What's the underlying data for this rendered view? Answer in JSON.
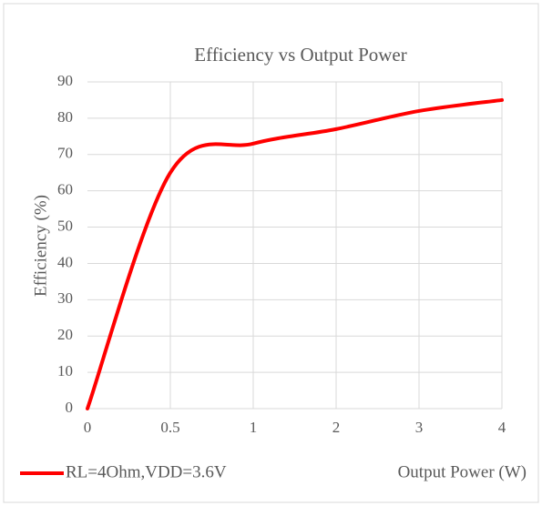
{
  "chart_data": {
    "type": "line",
    "title": "Efficiency vs Output Power",
    "x_label": "Output Power (W)",
    "y_label": "Efficiency (%)",
    "categories": [
      "0",
      "0.5",
      "1",
      "2",
      "3",
      "4"
    ],
    "series": [
      {
        "name": "RL=4Ohm,VDD=3.6V",
        "color": "#ff0000",
        "values": [
          0,
          65,
          73,
          77,
          82,
          85
        ]
      }
    ],
    "ylim": [
      0,
      90
    ],
    "yticks": [
      0,
      10,
      20,
      30,
      40,
      50,
      60,
      70,
      80,
      90
    ],
    "grid": true,
    "smooth": true,
    "legend": "bottom-left"
  }
}
